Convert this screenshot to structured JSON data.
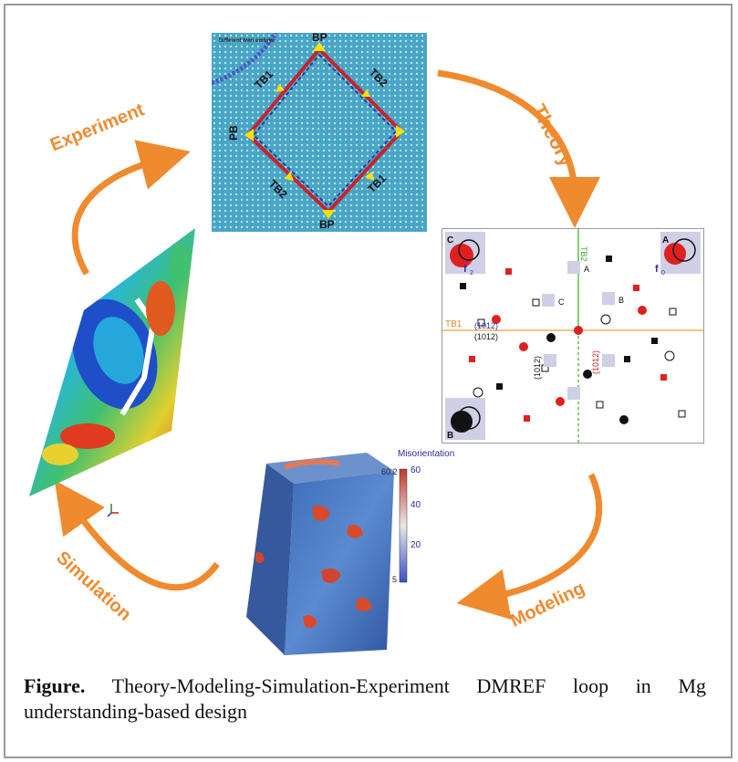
{
  "labels": {
    "experiment": "Experiment",
    "theory": "Theory",
    "modeling": "Modeling",
    "simulation": "Simulation"
  },
  "top_panel": {
    "embryo_note": "Different twin embryo",
    "bp_top": "BP",
    "bp_bottom": "BP",
    "pb": "PB",
    "tb1_left": "TB1",
    "tb2_right": "TB2",
    "tb2_left": "TB2",
    "tb1_right": "TB1"
  },
  "theory_panel": {
    "corner_c": "C",
    "corner_a": "A",
    "corner_b": "B",
    "site_a": "A",
    "site_b": "B",
    "site_c": "C",
    "tb1": "TB1",
    "tb2": "TB2",
    "plane_1": "(1012)",
    "plane_2": "(1012)",
    "plane_3": "(1012)",
    "plane_4": "(1012)",
    "f0": "f",
    "f0_sub": "0",
    "f2": "f",
    "f2_sub": "2"
  },
  "model_panel": {
    "colorbar_title": "Misorientation",
    "max_label": "60.2",
    "min_label": "5",
    "ticks": [
      "60",
      "40",
      "20"
    ]
  },
  "caption": {
    "lead": "Figure.",
    "text": " Theory-Modeling-Simulation-Experiment DMREF loop in Mg understanding-based design"
  },
  "colors": {
    "arrow": "#f08a2e",
    "border": "#9a9a9a",
    "top_bg": "#4aa6c8"
  }
}
